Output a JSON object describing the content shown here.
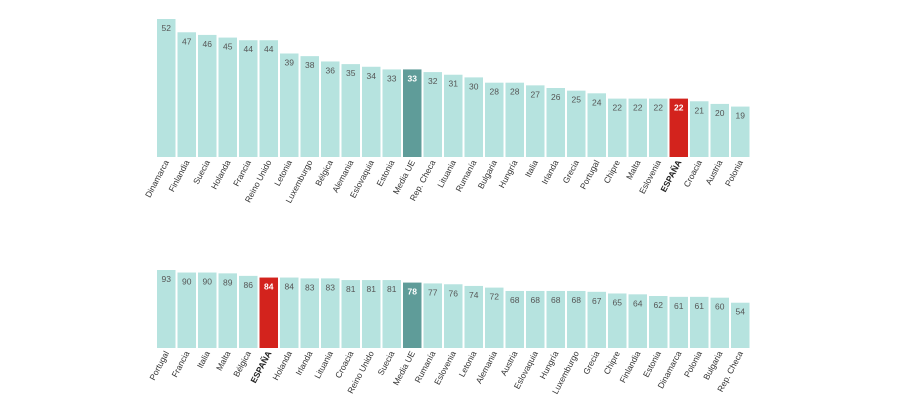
{
  "colors": {
    "bar": "#b6e3df",
    "average": "#5f9c99",
    "highlight": "#d3231d"
  },
  "chart_data": [
    {
      "type": "bar",
      "categories": [
        "Dinamarca",
        "Finlandia",
        "Suecia",
        "Holanda",
        "Francia",
        "Reino Unido",
        "Letonia",
        "Luxemburgo",
        "Bélgica",
        "Alemania",
        "Eslovaquia",
        "Estonia",
        "Media UE",
        "Rep. Checa",
        "Lituania",
        "Rumanía",
        "Bulgaria",
        "Hungría",
        "Italia",
        "Irlanda",
        "Grecia",
        "Portugal",
        "Chipre",
        "Malta",
        "Eslovenia",
        "ESPAÑA",
        "Croacia",
        "Austria",
        "Polonia"
      ],
      "values": [
        52,
        47,
        46,
        45,
        44,
        44,
        39,
        38,
        36,
        35,
        34,
        33,
        33,
        32,
        31,
        30,
        28,
        28,
        27,
        26,
        25,
        24,
        22,
        22,
        22,
        22,
        21,
        20,
        19
      ],
      "highlight": "ESPAÑA",
      "average": "Media UE",
      "ylim": [
        0,
        52
      ]
    },
    {
      "type": "bar",
      "categories": [
        "Portugal",
        "Francia",
        "Italia",
        "Malta",
        "Bélgica",
        "ESPAÑA",
        "Holanda",
        "Irlanda",
        "Lituania",
        "Croacia",
        "Reino Unido",
        "Suecia",
        "Media UE",
        "Rumanía",
        "Eslovenia",
        "Letonia",
        "Alemania",
        "Austria",
        "Eslovaquia",
        "Hungría",
        "Luxemburgo",
        "Grecia",
        "Chipre",
        "Finlandia",
        "Estonia",
        "Dinamarca",
        "Polonia",
        "Bulgaria",
        "Rep. Checa"
      ],
      "values": [
        93,
        90,
        90,
        89,
        86,
        84,
        84,
        83,
        83,
        81,
        81,
        81,
        78,
        77,
        76,
        74,
        72,
        68,
        68,
        68,
        68,
        67,
        65,
        64,
        62,
        61,
        61,
        60,
        54
      ],
      "highlight": "ESPAÑA",
      "average": "Media UE",
      "ylim": [
        0,
        93
      ]
    }
  ]
}
